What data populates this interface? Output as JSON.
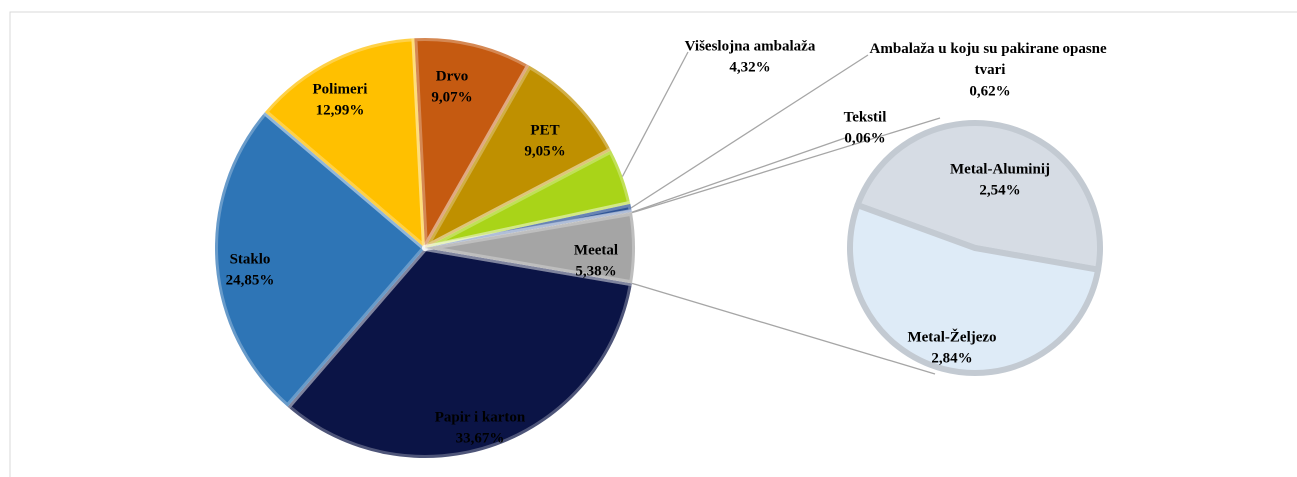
{
  "chart_data": {
    "type": "pie-of-pie",
    "categories": [
      "Papir i karton",
      "Staklo",
      "Polimeri",
      "Drvo",
      "PET",
      "Višeslojna ambalaža",
      "Ambalaža u koju su pakirane opasne tvari",
      "Tekstil",
      "Meetal"
    ],
    "values": [
      33.67,
      24.85,
      12.99,
      9.07,
      9.05,
      4.32,
      0.62,
      0.06,
      5.38
    ],
    "value_labels": [
      "33,67%",
      "24,85%",
      "12,99%",
      "9,07%",
      "9,05%",
      "4,32%",
      "0,62%",
      "0,06%",
      "5,38%"
    ],
    "colors": [
      "#0b1446",
      "#2e75b6",
      "#ffc000",
      "#c55a11",
      "#bf9000",
      "#a9d418",
      "#2f5597",
      "#7f7f7f",
      "#a5a5a5"
    ],
    "secondary": {
      "categories": [
        "Metal-Aluminij",
        "Metal-Željezo"
      ],
      "values": [
        2.54,
        2.84
      ],
      "value_labels": [
        "2,54%",
        "2,84%"
      ],
      "colors": [
        "#d6dce4",
        "#deebf7"
      ]
    }
  }
}
